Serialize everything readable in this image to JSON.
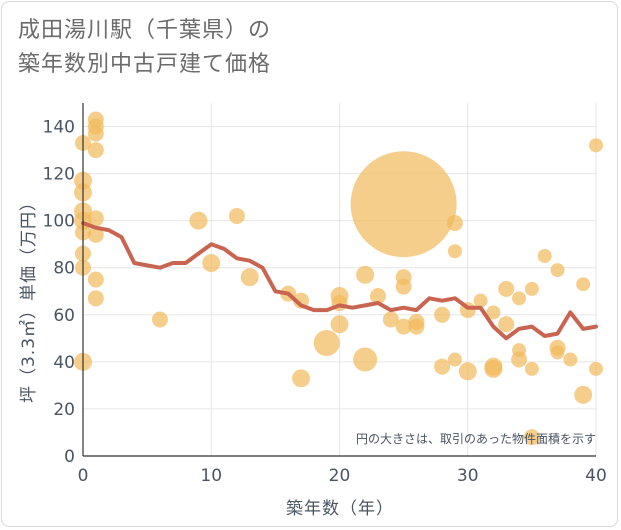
{
  "title_line1": "成田湯川駅（千葉県）の",
  "title_line2": "築年数別中古戸建て価格",
  "chart_data": {
    "type": "scatter",
    "xlabel": "築年数（年）",
    "ylabel": "坪（3.3㎡）単価（万円）",
    "xlim": [
      0,
      40
    ],
    "ylim": [
      0,
      150
    ],
    "x_ticks": [
      0,
      10,
      20,
      30,
      40
    ],
    "y_ticks": [
      0,
      20,
      40,
      60,
      80,
      100,
      120,
      140
    ],
    "grid": true,
    "note": "円の大きさは、取引のあった物件面積を示す",
    "bubble_color": "#f2b95a",
    "line_color": "#c96450",
    "points": [
      {
        "x": 0,
        "y": 117,
        "s": 9
      },
      {
        "x": 0,
        "y": 112,
        "s": 9
      },
      {
        "x": 0,
        "y": 104,
        "s": 9
      },
      {
        "x": 0,
        "y": 100,
        "s": 9
      },
      {
        "x": 0,
        "y": 95,
        "s": 8
      },
      {
        "x": 0,
        "y": 86,
        "s": 8
      },
      {
        "x": 0,
        "y": 80,
        "s": 8
      },
      {
        "x": 0,
        "y": 133,
        "s": 8
      },
      {
        "x": 0,
        "y": 40,
        "s": 9
      },
      {
        "x": 1,
        "y": 143,
        "s": 8
      },
      {
        "x": 1,
        "y": 140,
        "s": 8
      },
      {
        "x": 1,
        "y": 137,
        "s": 8
      },
      {
        "x": 1,
        "y": 130,
        "s": 8
      },
      {
        "x": 1,
        "y": 101,
        "s": 8
      },
      {
        "x": 1,
        "y": 94,
        "s": 8
      },
      {
        "x": 1,
        "y": 75,
        "s": 8
      },
      {
        "x": 1,
        "y": 67,
        "s": 8
      },
      {
        "x": 6,
        "y": 58,
        "s": 8
      },
      {
        "x": 9,
        "y": 100,
        "s": 9
      },
      {
        "x": 10,
        "y": 82,
        "s": 9
      },
      {
        "x": 12,
        "y": 102,
        "s": 8
      },
      {
        "x": 13,
        "y": 76,
        "s": 9
      },
      {
        "x": 16,
        "y": 69,
        "s": 8
      },
      {
        "x": 17,
        "y": 66,
        "s": 8
      },
      {
        "x": 17,
        "y": 33,
        "s": 9
      },
      {
        "x": 19,
        "y": 48,
        "s": 13
      },
      {
        "x": 20,
        "y": 68,
        "s": 9
      },
      {
        "x": 20,
        "y": 65,
        "s": 8
      },
      {
        "x": 20,
        "y": 56,
        "s": 9
      },
      {
        "x": 22,
        "y": 77,
        "s": 9
      },
      {
        "x": 22,
        "y": 41,
        "s": 12
      },
      {
        "x": 23,
        "y": 68,
        "s": 8
      },
      {
        "x": 24,
        "y": 58,
        "s": 8
      },
      {
        "x": 25,
        "y": 107,
        "s": 53
      },
      {
        "x": 25,
        "y": 76,
        "s": 8
      },
      {
        "x": 25,
        "y": 72,
        "s": 8
      },
      {
        "x": 25,
        "y": 55,
        "s": 8
      },
      {
        "x": 26,
        "y": 57,
        "s": 8
      },
      {
        "x": 26,
        "y": 55,
        "s": 8
      },
      {
        "x": 28,
        "y": 60,
        "s": 8
      },
      {
        "x": 28,
        "y": 38,
        "s": 8
      },
      {
        "x": 29,
        "y": 99,
        "s": 8
      },
      {
        "x": 29,
        "y": 87,
        "s": 7
      },
      {
        "x": 29,
        "y": 41,
        "s": 7
      },
      {
        "x": 30,
        "y": 62,
        "s": 8
      },
      {
        "x": 30,
        "y": 36,
        "s": 9
      },
      {
        "x": 31,
        "y": 66,
        "s": 7
      },
      {
        "x": 32,
        "y": 61,
        "s": 7
      },
      {
        "x": 32,
        "y": 38,
        "s": 9
      },
      {
        "x": 32,
        "y": 37,
        "s": 9
      },
      {
        "x": 33,
        "y": 71,
        "s": 8
      },
      {
        "x": 33,
        "y": 56,
        "s": 8
      },
      {
        "x": 34,
        "y": 67,
        "s": 7
      },
      {
        "x": 34,
        "y": 45,
        "s": 7
      },
      {
        "x": 34,
        "y": 41,
        "s": 8
      },
      {
        "x": 35,
        "y": 71,
        "s": 7
      },
      {
        "x": 35,
        "y": 37,
        "s": 7
      },
      {
        "x": 35,
        "y": 8,
        "s": 8
      },
      {
        "x": 36,
        "y": 85,
        "s": 7
      },
      {
        "x": 37,
        "y": 79,
        "s": 7
      },
      {
        "x": 37,
        "y": 46,
        "s": 8
      },
      {
        "x": 37,
        "y": 44,
        "s": 7
      },
      {
        "x": 38,
        "y": 41,
        "s": 7
      },
      {
        "x": 39,
        "y": 73,
        "s": 7
      },
      {
        "x": 39,
        "y": 26,
        "s": 9
      },
      {
        "x": 40,
        "y": 132,
        "s": 7
      },
      {
        "x": 40,
        "y": 37,
        "s": 7
      }
    ],
    "series": [
      {
        "x": [
          0,
          1,
          2,
          3,
          4,
          5,
          6,
          7,
          8,
          9,
          10,
          11,
          12,
          13,
          14,
          15,
          16,
          17,
          18,
          19,
          20,
          21,
          22,
          23,
          24,
          25,
          26,
          27,
          28,
          29,
          30,
          31,
          32,
          33,
          34,
          35,
          36,
          37,
          38,
          39,
          40
        ],
        "values": [
          99,
          97,
          96,
          93,
          82,
          81,
          80,
          82,
          82,
          86,
          90,
          88,
          84,
          83,
          80,
          70,
          69,
          64,
          62,
          62,
          64,
          63,
          64,
          65,
          62,
          63,
          62,
          67,
          66,
          67,
          63,
          63,
          55,
          50,
          54,
          55,
          51,
          52,
          61,
          54,
          55
        ]
      }
    ]
  }
}
